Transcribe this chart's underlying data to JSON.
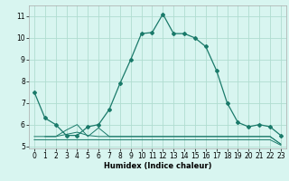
{
  "background_color": "#d8f5f0",
  "grid_color": "#b0ddd0",
  "line_color": "#1a7a6a",
  "xlabel": "Humidex (Indice chaleur)",
  "ylim": [
    4.9,
    11.5
  ],
  "xlim": [
    -0.5,
    23.5
  ],
  "yticks": [
    5,
    6,
    7,
    8,
    9,
    10,
    11
  ],
  "xticks": [
    0,
    1,
    2,
    3,
    4,
    5,
    6,
    7,
    8,
    9,
    10,
    11,
    12,
    13,
    14,
    15,
    16,
    17,
    18,
    19,
    20,
    21,
    22,
    23
  ],
  "main_x": [
    0,
    1,
    2,
    3,
    4,
    5,
    6,
    7,
    8,
    9,
    10,
    11,
    12,
    13,
    14,
    15,
    16,
    17,
    18,
    19,
    20,
    21,
    22,
    23
  ],
  "main_y": [
    7.5,
    6.3,
    6.0,
    5.5,
    5.5,
    5.9,
    6.0,
    6.7,
    7.9,
    9.0,
    10.2,
    10.25,
    11.1,
    10.2,
    10.2,
    10.0,
    9.6,
    8.5,
    7.0,
    6.1,
    5.9,
    6.0,
    5.9,
    5.5
  ],
  "line2_x": [
    0,
    1,
    2,
    3,
    4,
    5,
    6,
    7,
    8,
    9,
    10,
    11,
    12,
    13,
    14,
    15,
    16,
    17,
    18,
    19,
    20,
    21,
    22,
    23
  ],
  "line2_y": [
    5.3,
    5.3,
    5.3,
    5.3,
    5.3,
    5.3,
    5.3,
    5.3,
    5.3,
    5.3,
    5.3,
    5.3,
    5.3,
    5.3,
    5.3,
    5.3,
    5.3,
    5.3,
    5.3,
    5.3,
    5.3,
    5.3,
    5.3,
    5.05
  ],
  "line3_x": [
    0,
    1,
    2,
    3,
    4,
    5,
    6,
    7,
    8,
    9,
    10,
    11,
    12,
    13,
    14,
    15,
    16,
    17,
    18,
    19,
    20,
    21,
    22,
    23
  ],
  "line3_y": [
    5.45,
    5.45,
    5.45,
    5.55,
    5.65,
    5.5,
    5.45,
    5.45,
    5.45,
    5.45,
    5.45,
    5.45,
    5.45,
    5.45,
    5.45,
    5.45,
    5.45,
    5.45,
    5.45,
    5.45,
    5.45,
    5.45,
    5.45,
    5.1
  ],
  "line4_x": [
    1,
    2,
    3,
    4,
    5,
    6,
    7,
    8,
    9,
    10,
    11,
    12,
    13,
    14,
    15,
    16,
    17,
    18,
    19,
    20,
    21,
    22,
    23
  ],
  "line4_y": [
    5.45,
    5.45,
    5.75,
    6.0,
    5.45,
    5.85,
    5.45,
    5.45,
    5.45,
    5.45,
    5.45,
    5.45,
    5.45,
    5.45,
    5.45,
    5.45,
    5.45,
    5.45,
    5.45,
    5.45,
    5.45,
    5.45,
    5.1
  ],
  "tick_fontsize": 5.5,
  "xlabel_fontsize": 6.0
}
